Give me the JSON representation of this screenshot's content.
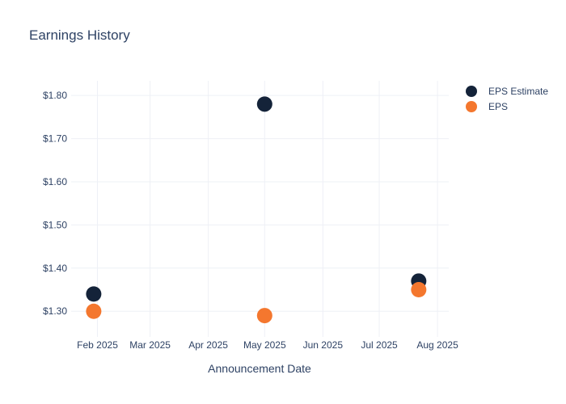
{
  "chart_data": {
    "type": "scatter",
    "title": "Earnings History",
    "xlabel": "Announcement Date",
    "ylabel": "",
    "x_is_time": true,
    "xlim": [
      "2025-01-18",
      "2025-08-07"
    ],
    "ylim": [
      1.248,
      1.834
    ],
    "grid": true,
    "legend_position": "outside-top-right",
    "x_ticks": [
      {
        "date": "2025-02-01",
        "label": "Feb 2025"
      },
      {
        "date": "2025-03-01",
        "label": "Mar 2025"
      },
      {
        "date": "2025-04-01",
        "label": "Apr 2025"
      },
      {
        "date": "2025-05-01",
        "label": "May 2025"
      },
      {
        "date": "2025-06-01",
        "label": "Jun 2025"
      },
      {
        "date": "2025-07-01",
        "label": "Jul 2025"
      },
      {
        "date": "2025-08-01",
        "label": "Aug 2025"
      }
    ],
    "y_ticks": [
      {
        "value": 1.3,
        "label": "$1.30"
      },
      {
        "value": 1.4,
        "label": "$1.40"
      },
      {
        "value": 1.5,
        "label": "$1.50"
      },
      {
        "value": 1.6,
        "label": "$1.60"
      },
      {
        "value": 1.7,
        "label": "$1.70"
      },
      {
        "value": 1.8,
        "label": "$1.80"
      }
    ],
    "series": [
      {
        "name": "EPS Estimate",
        "color": "#142339",
        "marker_size": 19,
        "points": [
          {
            "date": "2025-01-30",
            "value": 1.34
          },
          {
            "date": "2025-05-01",
            "value": 1.78
          },
          {
            "date": "2025-07-22",
            "value": 1.37
          }
        ]
      },
      {
        "name": "EPS",
        "color": "#f4772e",
        "marker_size": 19,
        "points": [
          {
            "date": "2025-01-30",
            "value": 1.3
          },
          {
            "date": "2025-05-01",
            "value": 1.29
          },
          {
            "date": "2025-07-22",
            "value": 1.35
          }
        ]
      }
    ],
    "colors": {
      "background": "#ffffff",
      "grid": "#eef0f6",
      "text": "#2e4264"
    }
  }
}
